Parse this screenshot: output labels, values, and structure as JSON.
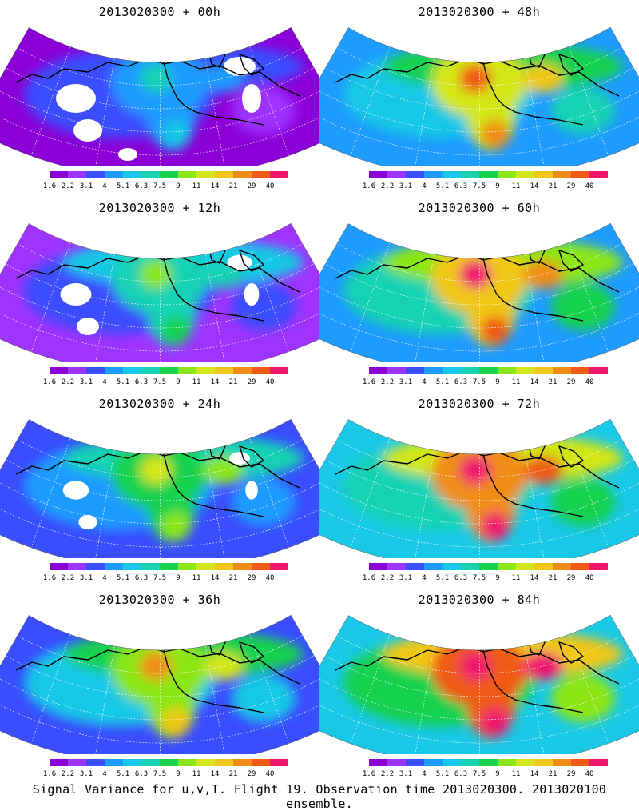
{
  "footer": "Signal Variance for u,v,T. Flight 19. Observation time 2013020300. 2013020100 ensemble.",
  "colorbar": {
    "labels": [
      "1.6",
      "2.2",
      "3.1",
      "4",
      "5.1",
      "6.3",
      "7.5",
      "9",
      "11",
      "14",
      "21",
      "29",
      "40"
    ],
    "colors": [
      "#8b00d6",
      "#9f33ff",
      "#3a4dff",
      "#1e9bff",
      "#19c8e6",
      "#19d2b4",
      "#19d250",
      "#8ce619",
      "#d2e619",
      "#f0c819",
      "#f08c19",
      "#f05a19",
      "#f0146e"
    ]
  },
  "panels": [
    {
      "id": "p00",
      "title": "2013020300 + 00h",
      "level": 0.0
    },
    {
      "id": "p48",
      "title": "2013020300 + 48h",
      "level": 0.6
    },
    {
      "id": "p12",
      "title": "2013020300 + 12h",
      "level": 0.22
    },
    {
      "id": "p60",
      "title": "2013020300 + 60h",
      "level": 0.7
    },
    {
      "id": "p24",
      "title": "2013020300 + 24h",
      "level": 0.35
    },
    {
      "id": "p72",
      "title": "2013020300 + 72h",
      "level": 0.8
    },
    {
      "id": "p36",
      "title": "2013020300 + 36h",
      "level": 0.48
    },
    {
      "id": "p84",
      "title": "2013020300 + 84h",
      "level": 0.9
    }
  ]
}
